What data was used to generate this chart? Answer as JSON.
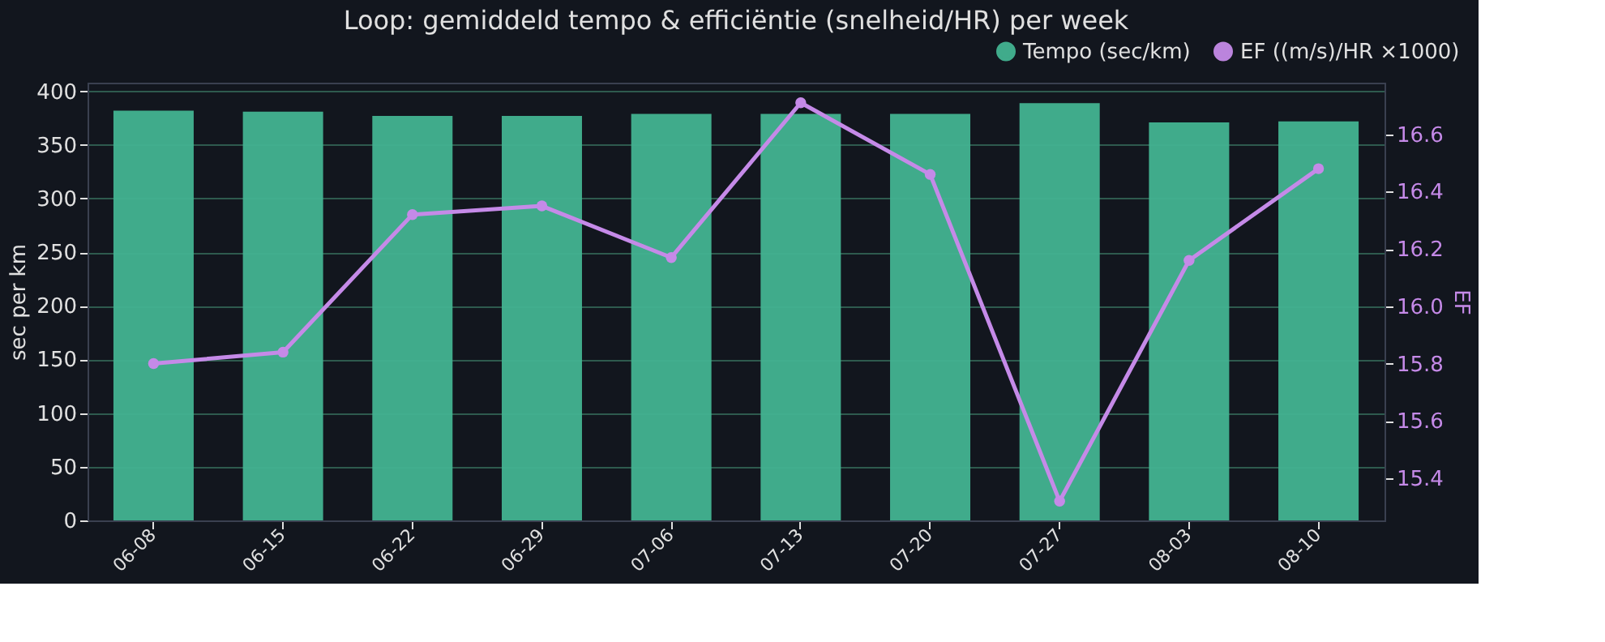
{
  "chart_data": {
    "type": "bar",
    "title": "Loop: gemiddeld tempo & efficiëntie (snelheid/HR) per week",
    "categories": [
      "06-08",
      "06-15",
      "06-22",
      "06-29",
      "07-06",
      "07-13",
      "07-20",
      "07-27",
      "08-03",
      "08-10"
    ],
    "series": [
      {
        "name": "Tempo (sec/km)",
        "color": "#43b391",
        "values": [
          382,
          381,
          377,
          377,
          379,
          379,
          379,
          389,
          371,
          372
        ]
      },
      {
        "name": "EF ((m/s)/HR ×1000)",
        "type": "line",
        "axis": "y2",
        "color": "#c58ae8",
        "marker": "circle",
        "values": [
          15.8,
          15.84,
          16.32,
          16.35,
          16.17,
          16.71,
          16.46,
          15.32,
          16.16,
          16.48
        ]
      }
    ],
    "ylabel": "sec per km",
    "y2label": "EF",
    "ylim": [
      0,
      408
    ],
    "yticks": [
      0,
      50,
      100,
      150,
      200,
      250,
      300,
      350,
      400
    ],
    "y2lim": [
      15.253,
      16.78
    ],
    "y2ticks": [
      {
        "value": 15.4,
        "label": "15.4"
      },
      {
        "value": 15.6,
        "label": "15.6"
      },
      {
        "value": 15.8,
        "label": "15.8"
      },
      {
        "value": 16.0,
        "label": "16.0"
      },
      {
        "value": 16.2,
        "label": "16.2"
      },
      {
        "value": 16.4,
        "label": "16.4"
      },
      {
        "value": 16.6,
        "label": "16.6"
      }
    ],
    "grid": "y",
    "legend": "top right"
  }
}
